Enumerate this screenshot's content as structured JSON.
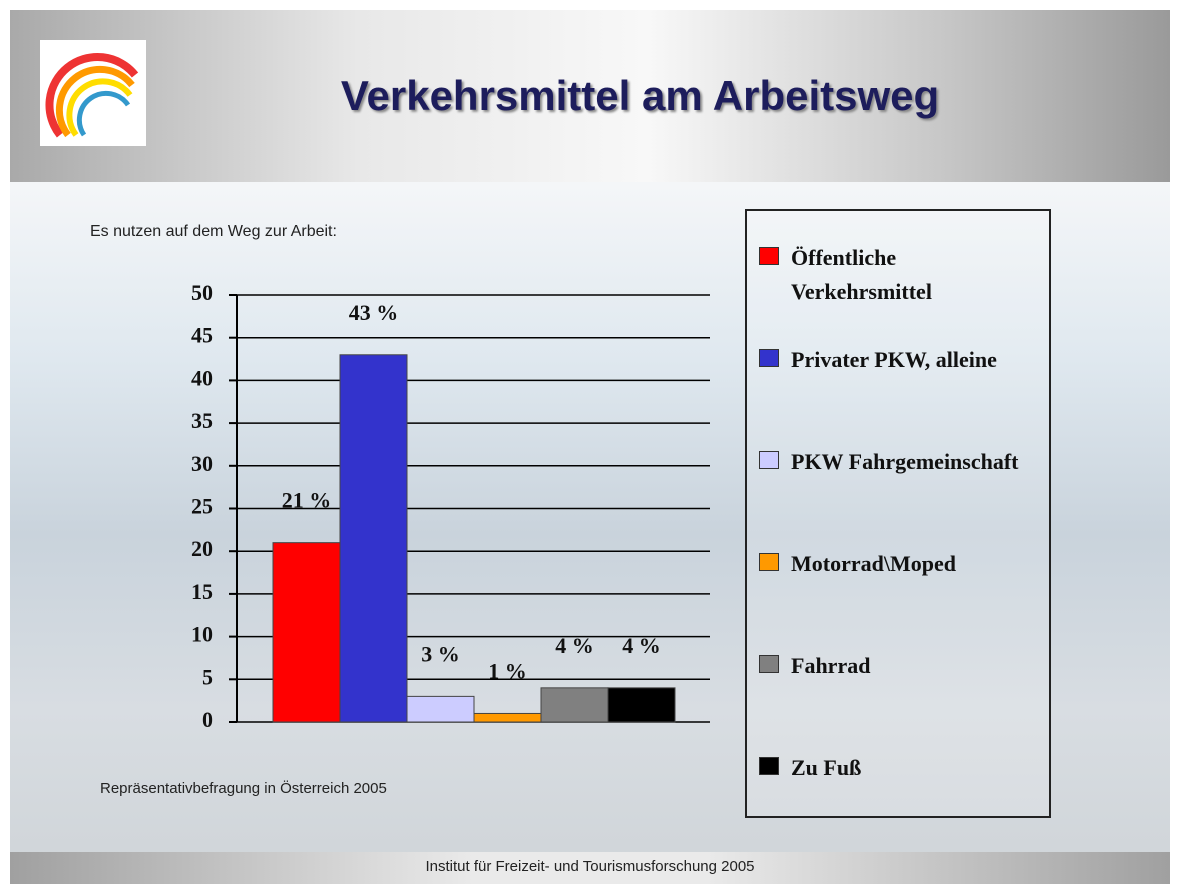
{
  "chart_data": {
    "type": "bar",
    "title": "Verkehrsmittel am Arbeitsweg",
    "subtitle": "Es nutzen auf dem Weg zur Arbeit:",
    "note": "Repräsentativbefragung in Österreich 2005",
    "source": "Institut für Freizeit- und Tourismusforschung 2005",
    "categories": [
      null
    ],
    "series": [
      {
        "name": "Öffentliche Verkehrsmittel",
        "color": "#ff0000",
        "values": [
          21
        ],
        "value_labels": [
          "21 %"
        ]
      },
      {
        "name": "Privater PKW, alleine",
        "color": "#3333cc",
        "values": [
          43
        ],
        "value_labels": [
          "43 %"
        ]
      },
      {
        "name": "PKW Fahrgemeinschaft",
        "color": "#ccccff",
        "values": [
          3
        ],
        "value_labels": [
          "3 %"
        ]
      },
      {
        "name": "Motorrad\\Moped",
        "color": "#ff9900",
        "values": [
          1
        ],
        "value_labels": [
          "1 %"
        ]
      },
      {
        "name": "Fahrrad",
        "color": "#808080",
        "values": [
          4
        ],
        "value_labels": [
          "4 %"
        ]
      },
      {
        "name": "Zu Fuß",
        "color": "#000000",
        "values": [
          4
        ],
        "value_labels": [
          "4 %"
        ]
      }
    ],
    "ylim": [
      0,
      50
    ],
    "yticks": [
      0,
      5,
      10,
      15,
      20,
      25,
      30,
      35,
      40,
      45,
      50
    ],
    "grid": true
  }
}
